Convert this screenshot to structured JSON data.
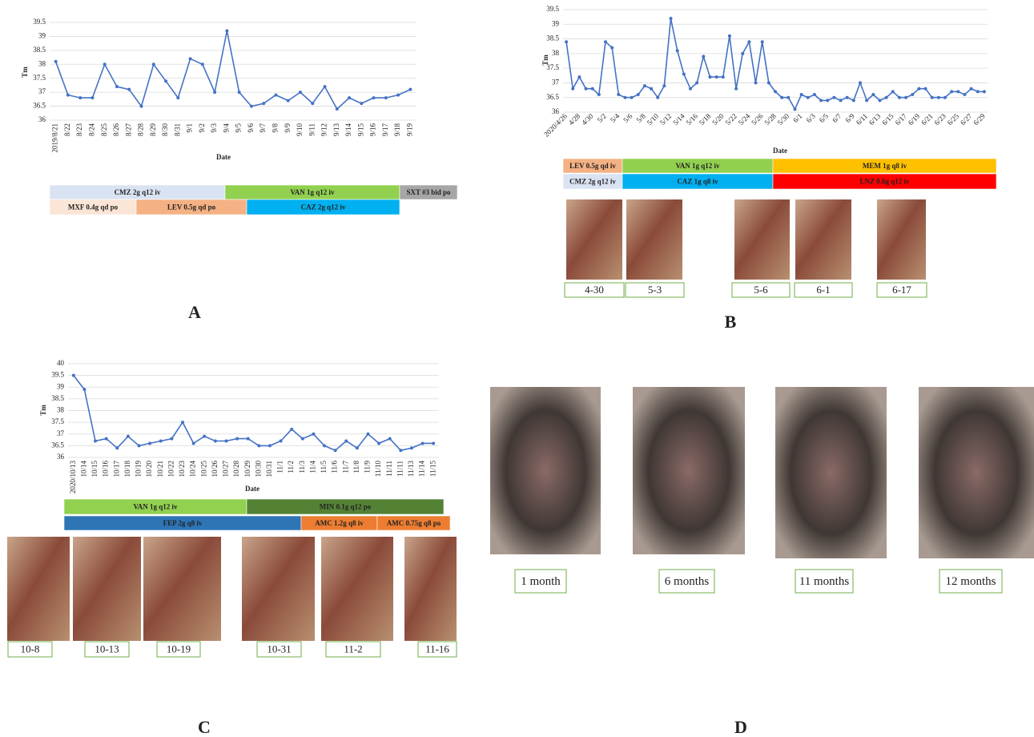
{
  "chart_data": [
    {
      "type": "line",
      "x_label": "Date",
      "y_label": "Tm",
      "color": "#4472c4",
      "grid": true,
      "categories": [
        "2019/8/21",
        "8/22",
        "8/23",
        "8/24",
        "8/25",
        "8/26",
        "8/27",
        "8/28",
        "8/29",
        "8/30",
        "8/31",
        "9/1",
        "9/2",
        "9/3",
        "9/4",
        "9/5",
        "9/6",
        "9/7",
        "9/8",
        "9/9",
        "9/10",
        "9/11",
        "9/12",
        "9/13",
        "9/14",
        "9/15",
        "9/16",
        "9/17",
        "9/18",
        "9/19"
      ],
      "values": [
        38.1,
        36.9,
        36.8,
        36.8,
        38.0,
        37.2,
        37.1,
        36.5,
        38.0,
        37.4,
        36.8,
        38.2,
        38.0,
        37.0,
        39.2,
        37.0,
        36.5,
        36.6,
        36.9,
        36.7,
        37.0,
        36.6,
        37.2,
        36.4,
        36.8,
        36.6,
        36.8,
        36.8,
        36.9,
        37.1
      ],
      "ylim": [
        36,
        39.5
      ],
      "yticks": [
        36,
        36.5,
        37,
        37.5,
        38,
        38.5,
        39,
        39.5
      ]
    },
    {
      "type": "line",
      "x_label": "Date",
      "y_label": "Tm",
      "color": "#4472c4",
      "grid": true,
      "categories": [
        "2020/4/26",
        null,
        "4/28",
        null,
        "4/30",
        null,
        "5/2",
        null,
        "5/4",
        null,
        "5/6",
        null,
        "5/8",
        null,
        "5/10",
        null,
        "5/12",
        null,
        "5/14",
        null,
        "5/16",
        null,
        "5/18",
        null,
        "5/20",
        null,
        "5/22",
        null,
        "5/24",
        null,
        "5/26",
        null,
        "5/28",
        null,
        "5/30",
        null,
        "6/1",
        null,
        "6/3",
        null,
        "6/5",
        null,
        "6/7",
        null,
        "6/9",
        null,
        "6/11",
        null,
        "6/13",
        null,
        "6/15",
        null,
        "6/17",
        null,
        "6/19",
        null,
        "6/21",
        null,
        "6/23",
        null,
        "6/25",
        null,
        "6/27",
        null,
        "6/29"
      ],
      "values": [
        38.4,
        36.8,
        37.2,
        36.8,
        36.8,
        36.6,
        38.4,
        38.2,
        36.6,
        36.5,
        36.5,
        36.6,
        36.9,
        36.8,
        36.5,
        36.9,
        39.2,
        38.1,
        37.3,
        36.8,
        37.0,
        37.9,
        37.2,
        37.2,
        37.2,
        38.6,
        36.8,
        38.0,
        38.4,
        37.0,
        38.4,
        37.0,
        36.7,
        36.5,
        36.5,
        36.1,
        36.6,
        36.5,
        36.6,
        36.4,
        36.4,
        36.5,
        36.4,
        36.5,
        36.4,
        37.0,
        36.4,
        36.6,
        36.4,
        36.5,
        36.7,
        36.5,
        36.5,
        36.6,
        36.8,
        36.8,
        36.5,
        36.5,
        36.5,
        36.7,
        36.7,
        36.6,
        36.8,
        36.7,
        36.7
      ],
      "ylim": [
        36,
        39.5
      ],
      "yticks": [
        36,
        36.5,
        37,
        37.5,
        38,
        38.5,
        39,
        39.5
      ]
    },
    {
      "type": "line",
      "x_label": "Date",
      "y_label": "Tm",
      "color": "#4472c4",
      "grid": true,
      "categories": [
        "2020/10/13",
        "10/14",
        "10/15",
        "10/16",
        "10/17",
        "10/18",
        "10/19",
        "10/20",
        "10/21",
        "10/22",
        "10/23",
        "10/24",
        "10/25",
        "10/26",
        "10/27",
        "10/28",
        "10/29",
        "10/30",
        "10/31",
        "11/1",
        "11/2",
        "11/3",
        "11/4",
        "11/5",
        "11/6",
        "11/7",
        "11/8",
        "11/9",
        "11/10",
        "11/11",
        "11/11",
        "11/13",
        "11/14",
        "11/15"
      ],
      "values": [
        39.5,
        38.9,
        36.7,
        36.8,
        36.4,
        36.9,
        36.5,
        36.6,
        36.7,
        36.8,
        37.5,
        36.6,
        36.9,
        36.7,
        36.7,
        36.8,
        36.8,
        36.5,
        36.5,
        36.7,
        37.2,
        36.8,
        37.0,
        36.5,
        36.3,
        36.7,
        36.4,
        37.0,
        36.6,
        36.8,
        36.3,
        36.4,
        36.6,
        36.6
      ],
      "ylim": [
        36,
        40
      ],
      "yticks": [
        36,
        36.5,
        37,
        37.5,
        38,
        38.5,
        39,
        39.5,
        40
      ]
    }
  ],
  "regimens": [
    {
      "rows": [
        [
          {
            "label": "CMZ 2g q12 iv",
            "color": "#dae3f3"
          },
          {
            "label": "VAN 1g q12 iv",
            "color": "#92d050"
          },
          {
            "label": "SXT #3 bid po",
            "color": "#a6a6a6"
          }
        ],
        [
          {
            "label": "MXF 0.4g qd po",
            "color": "#fbe5d6"
          },
          {
            "label": "LEV 0.5g qd po",
            "color": "#f4b183"
          },
          {
            "label": "CAZ 2g q12 iv",
            "color": "#00b0f0"
          }
        ]
      ]
    },
    {
      "rows": [
        [
          {
            "label": "LEV 0.5g qd iv",
            "color": "#f4b183"
          },
          {
            "label": "VAN 1g q12 iv",
            "color": "#92d050"
          },
          {
            "label": "MEM 1g q8 iv",
            "color": "#ffc000"
          }
        ],
        [
          {
            "label": "CMZ 2g q12 iv",
            "color": "#dae3f3"
          },
          {
            "label": "CAZ 1g q8 iv",
            "color": "#00b0f0"
          },
          {
            "label": "LNZ 0.6g q12 iv",
            "color": "#ff0000"
          }
        ]
      ]
    },
    {
      "rows": [
        [
          {
            "label": "VAN 1g q12 iv",
            "color": "#92d050"
          },
          {
            "label": "MIN 0.1g q12 po",
            "color": "#548235"
          }
        ],
        [
          {
            "label": "FEP 2g q8 iv",
            "color": "#2e75b6"
          },
          {
            "label": "AMC 1.2g q8 iv",
            "color": "#ed7d31"
          },
          {
            "label": "AMC 0.75g q8 po",
            "color": "#ed7d31"
          }
        ]
      ]
    }
  ],
  "photo_labels": [
    [
      "4-30",
      "5-3",
      "5-6",
      "6-1",
      "6-17"
    ],
    [
      "10-8",
      "10-13",
      "10-19",
      "10-31",
      "11-2",
      "11-16"
    ],
    [
      "1 month",
      "6 months",
      "11 months",
      "12 months"
    ]
  ],
  "panel_labels": [
    "A",
    "B",
    "C",
    "D"
  ]
}
